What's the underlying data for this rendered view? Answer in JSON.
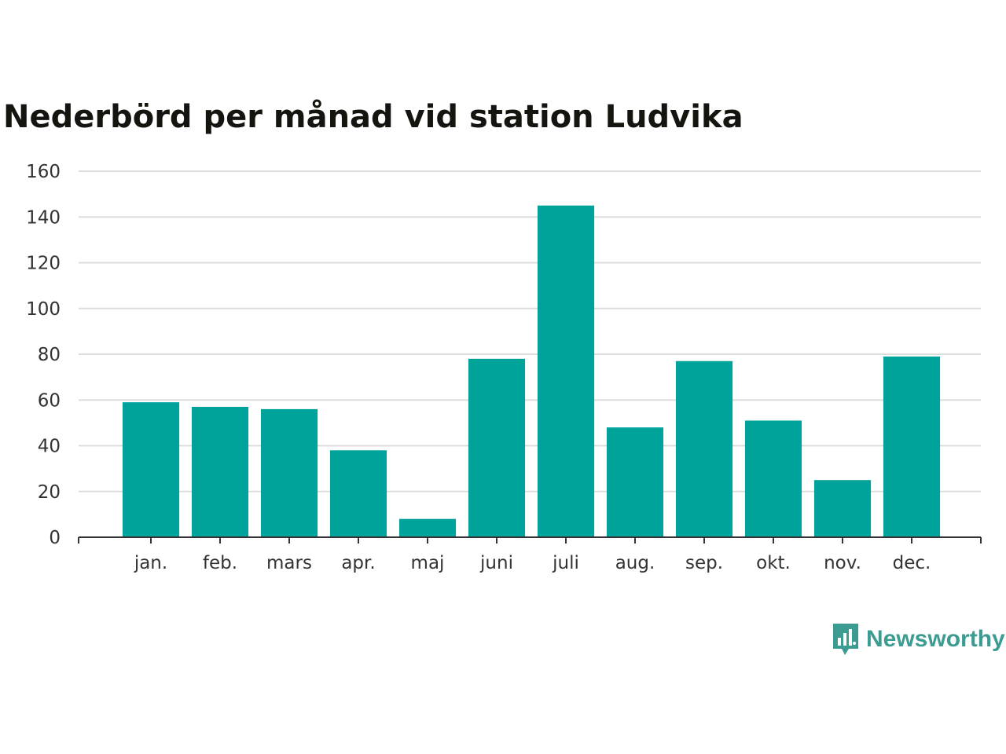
{
  "colors": {
    "bar": "#00a39a",
    "grid": "#dddddd",
    "axis": "#333333",
    "text": "#333333",
    "title": "#151510",
    "brand": "#3d9c91"
  },
  "brand": {
    "name": "Newsworthy",
    "icon": "chart-speech-bubble-icon"
  },
  "chart_data": {
    "type": "bar",
    "title": "Nederbörd per månad vid station Ludvika",
    "xlabel": "",
    "ylabel": "",
    "categories": [
      "jan.",
      "feb.",
      "mars",
      "apr.",
      "maj",
      "juni",
      "juli",
      "aug.",
      "sep.",
      "okt.",
      "nov.",
      "dec."
    ],
    "values": [
      59,
      57,
      56,
      38,
      8,
      78,
      145,
      48,
      77,
      51,
      25,
      79
    ],
    "ylim": [
      0,
      160
    ],
    "yticks": [
      0,
      20,
      40,
      60,
      80,
      100,
      120,
      140,
      160
    ],
    "grid": true,
    "legend": "none"
  }
}
